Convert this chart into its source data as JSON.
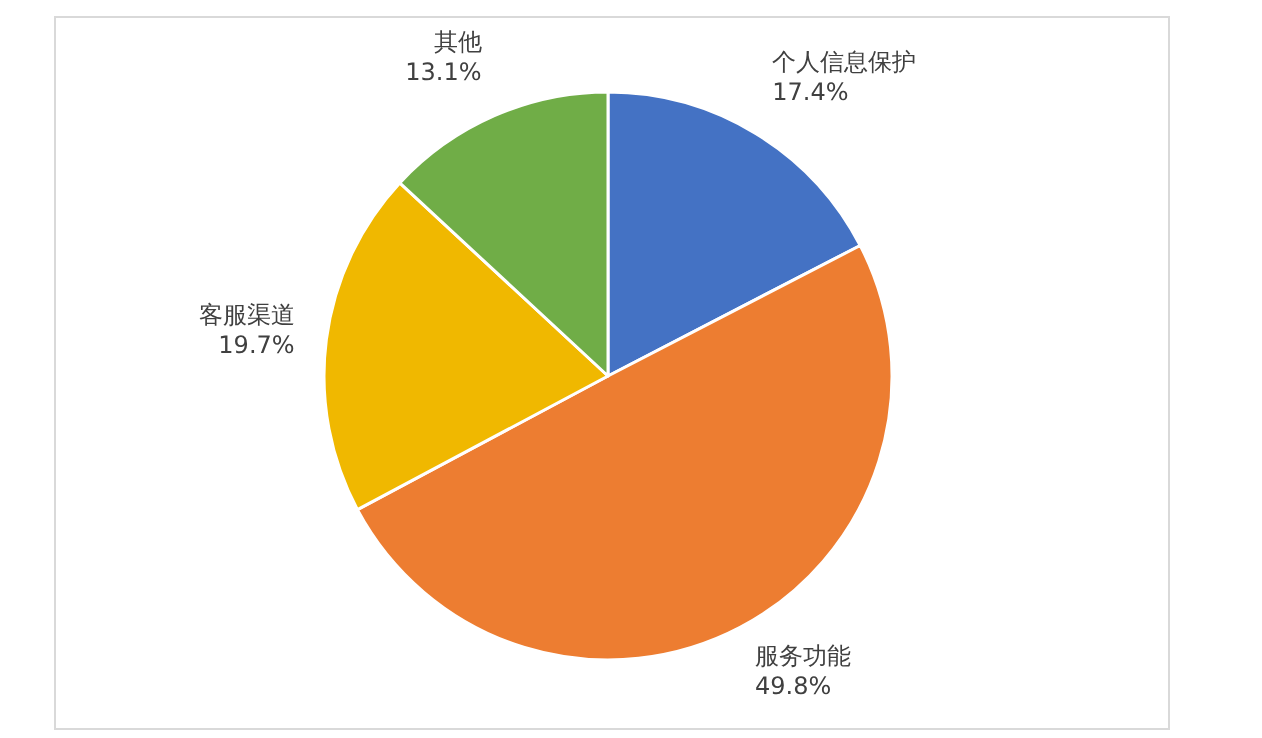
{
  "chart_data": {
    "type": "pie",
    "categories": [
      "个人信息保护",
      "服务功能",
      "客服渠道",
      "其他"
    ],
    "values": [
      17.4,
      49.8,
      19.7,
      13.1
    ],
    "colors": [
      "#4472c4",
      "#ed7d31",
      "#f0b800",
      "#70ad47"
    ],
    "value_labels": [
      "17.4%",
      "49.8%",
      "19.7%",
      "13.1%"
    ]
  }
}
